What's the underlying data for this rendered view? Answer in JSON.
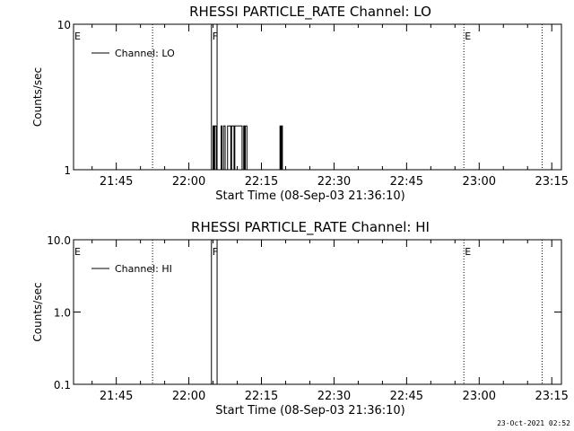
{
  "chart_data": [
    {
      "type": "line",
      "title": "RHESSI PARTICLE_RATE Channel: LO",
      "xlabel": "Start Time (08-Sep-03 21:36:10)",
      "ylabel": "Counts/sec",
      "yscale": "log",
      "ylim": [
        1,
        10
      ],
      "xlim": [
        "21:36:10",
        "23:17:00"
      ],
      "yticks": [
        "1",
        "10"
      ],
      "xticks": [
        "21:45",
        "22:00",
        "22:15",
        "22:30",
        "22:45",
        "23:00",
        "23:15"
      ],
      "legend": "Channel: LO",
      "legend_position": "top-left",
      "markers": [
        {
          "label": "E",
          "x": "21:36:10",
          "line": false
        },
        {
          "label": "",
          "x": "21:52:30",
          "line": true
        },
        {
          "label": "F",
          "x": "22:04:40",
          "line": false
        },
        {
          "label": "E",
          "x": "22:56:50",
          "line": true
        },
        {
          "label": "",
          "x": "23:13:00",
          "line": true
        }
      ],
      "series": [
        {
          "name": "Channel: LO",
          "x": [
            "22:04:45",
            "22:05:00",
            "22:05:10",
            "22:05:20",
            "22:05:40",
            "22:06:00",
            "22:06:40",
            "22:06:50",
            "22:07:10",
            "22:07:30",
            "22:07:40",
            "22:08:00",
            "22:08:40",
            "22:08:50",
            "22:09:00",
            "22:09:20",
            "22:09:30",
            "22:09:50",
            "22:10:00",
            "22:10:40",
            "22:11:00",
            "22:11:20",
            "22:11:30",
            "22:11:40",
            "22:12:00",
            "22:12:30",
            "22:18:50",
            "22:19:00",
            "22:19:10",
            "22:19:20"
          ],
          "y": [
            1,
            2,
            1,
            2,
            1,
            1,
            2,
            1,
            2,
            1,
            1,
            2,
            1,
            2,
            2,
            1,
            2,
            2,
            2,
            2,
            1,
            2,
            1,
            2,
            1,
            1,
            2,
            1,
            2,
            1
          ]
        }
      ]
    },
    {
      "type": "line",
      "title": "RHESSI PARTICLE_RATE Channel: HI",
      "xlabel": "Start Time (08-Sep-03 21:36:10)",
      "ylabel": "Counts/sec",
      "yscale": "log",
      "ylim": [
        0.1,
        10
      ],
      "xlim": [
        "21:36:10",
        "23:17:00"
      ],
      "yticks": [
        "0.1",
        "1.0",
        "10.0"
      ],
      "xticks": [
        "21:45",
        "22:00",
        "22:15",
        "22:30",
        "22:45",
        "23:00",
        "23:15"
      ],
      "legend": "Channel: HI",
      "legend_position": "top-left",
      "markers": [
        {
          "label": "E",
          "x": "21:36:10",
          "line": false
        },
        {
          "label": "",
          "x": "21:52:30",
          "line": true
        },
        {
          "label": "F",
          "x": "22:04:40",
          "line": false
        },
        {
          "label": "E",
          "x": "22:56:50",
          "line": true
        },
        {
          "label": "",
          "x": "23:13:00",
          "line": true
        }
      ],
      "series": []
    }
  ],
  "timestamp": "23-Oct-2021 02:52"
}
